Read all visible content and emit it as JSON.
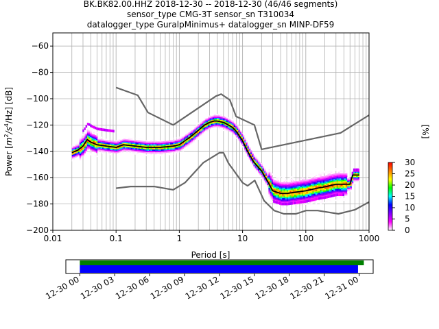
{
  "title_lines": [
    "BK.BK82.00.HHZ   2018-12-30 -- 2018-12-30  (46/46 segments)",
    "sensor_type CMG-3T sensor_sn T310034",
    "datalogger_type GuralpMinimus+ datalogger_sn MINP-DF59"
  ],
  "chart_data": {
    "type": "heatmap",
    "xlabel": "Period [s]",
    "ylabel": "Power [m²/s⁴/Hz] [dB]",
    "ylabel_parts": {
      "base": "Power [",
      "m": "m",
      "sup2": "2",
      "mid": "/s",
      "sup4": "4",
      "tail": "/Hz] [dB]"
    },
    "xscale": "log",
    "xlim": [
      0.01,
      1000
    ],
    "ylim": [
      -200,
      -50
    ],
    "x_ticks": [
      0.01,
      0.1,
      1,
      10,
      100,
      1000
    ],
    "x_tick_labels": [
      "0.01",
      "0.1",
      "1",
      "10",
      "100",
      "1000"
    ],
    "y_ticks": [
      -200,
      -180,
      -160,
      -140,
      -120,
      -100,
      -80,
      -60
    ],
    "y_tick_labels": [
      "−200",
      "−180",
      "−160",
      "−140",
      "−120",
      "−100",
      "−80",
      "−60"
    ],
    "grid": true,
    "colorbar": {
      "label": "[%]",
      "range": [
        0,
        30
      ],
      "ticks": [
        0,
        5,
        10,
        15,
        20,
        25,
        30
      ],
      "tick_labels": [
        "0",
        "5",
        "10",
        "15",
        "20",
        "25",
        "30"
      ],
      "colors": [
        "#ffffff",
        "#ff00ff",
        "#7f00ff",
        "#0000ff",
        "#00ffff",
        "#00ff00",
        "#ffff00",
        "#ff8000",
        "#ff0000"
      ]
    },
    "noise_model_high": {
      "name": "NHNM",
      "x": [
        0.1,
        0.22,
        0.32,
        0.8,
        3.8,
        4.6,
        6.3,
        7.9,
        15.4,
        20,
        354.8,
        1000
      ],
      "y": [
        -91.5,
        -97.4,
        -110.5,
        -120,
        -98,
        -96.5,
        -101,
        -113.5,
        -120,
        -138.5,
        -126,
        -112.5
      ]
    },
    "noise_model_low": {
      "name": "NLNM",
      "x": [
        0.1,
        0.17,
        0.4,
        0.8,
        1.24,
        2.4,
        4.3,
        5,
        6,
        10,
        12,
        15.6,
        21.9,
        31.6,
        45,
        70,
        101,
        154,
        328,
        600,
        1000
      ],
      "y": [
        -168,
        -166.7,
        -166.7,
        -169.2,
        -163.7,
        -148.6,
        -141.1,
        -141.1,
        -149,
        -163.8,
        -166.2,
        -162.1,
        -177.5,
        -185,
        -187.5,
        -187.5,
        -185,
        -185,
        -187.5,
        -184.4,
        -178.5
      ]
    },
    "mean_curve": {
      "x": [
        0.02,
        0.025,
        0.03,
        0.035,
        0.04,
        0.05,
        0.07,
        0.1,
        0.13,
        0.2,
        0.3,
        0.5,
        0.8,
        1,
        1.5,
        2,
        2.5,
        3,
        3.5,
        4,
        5,
        6,
        7,
        8,
        10,
        12,
        15,
        20,
        25,
        30,
        40,
        50,
        70,
        100,
        150,
        200,
        300,
        400,
        500,
        550,
        600,
        700
      ],
      "y": [
        -141,
        -139,
        -136,
        -131,
        -133,
        -135,
        -136,
        -137,
        -135,
        -136,
        -137,
        -137,
        -136,
        -135,
        -129,
        -124,
        -120,
        -118,
        -117,
        -117,
        -118,
        -120,
        -122,
        -125,
        -132,
        -140,
        -148,
        -155,
        -163,
        -170,
        -172,
        -172,
        -171,
        -170,
        -168,
        -167,
        -165,
        -165,
        -165,
        -158,
        -158,
        -158
      ]
    },
    "time_coverage": {
      "tick_labels": [
        "12-30 00",
        "12-30 03",
        "12-30 06",
        "12-30 09",
        "12-30 12",
        "12-30 15",
        "12-30 18",
        "12-30 21",
        "12-31 00"
      ],
      "tick_hours": [
        0,
        3,
        6,
        9,
        12,
        15,
        18,
        21,
        24
      ],
      "span_hours": [
        -1.2,
        25.2
      ],
      "green_bar_hours": [
        0,
        24.4
      ],
      "blue_bar_hours": [
        0,
        23.9
      ]
    }
  }
}
